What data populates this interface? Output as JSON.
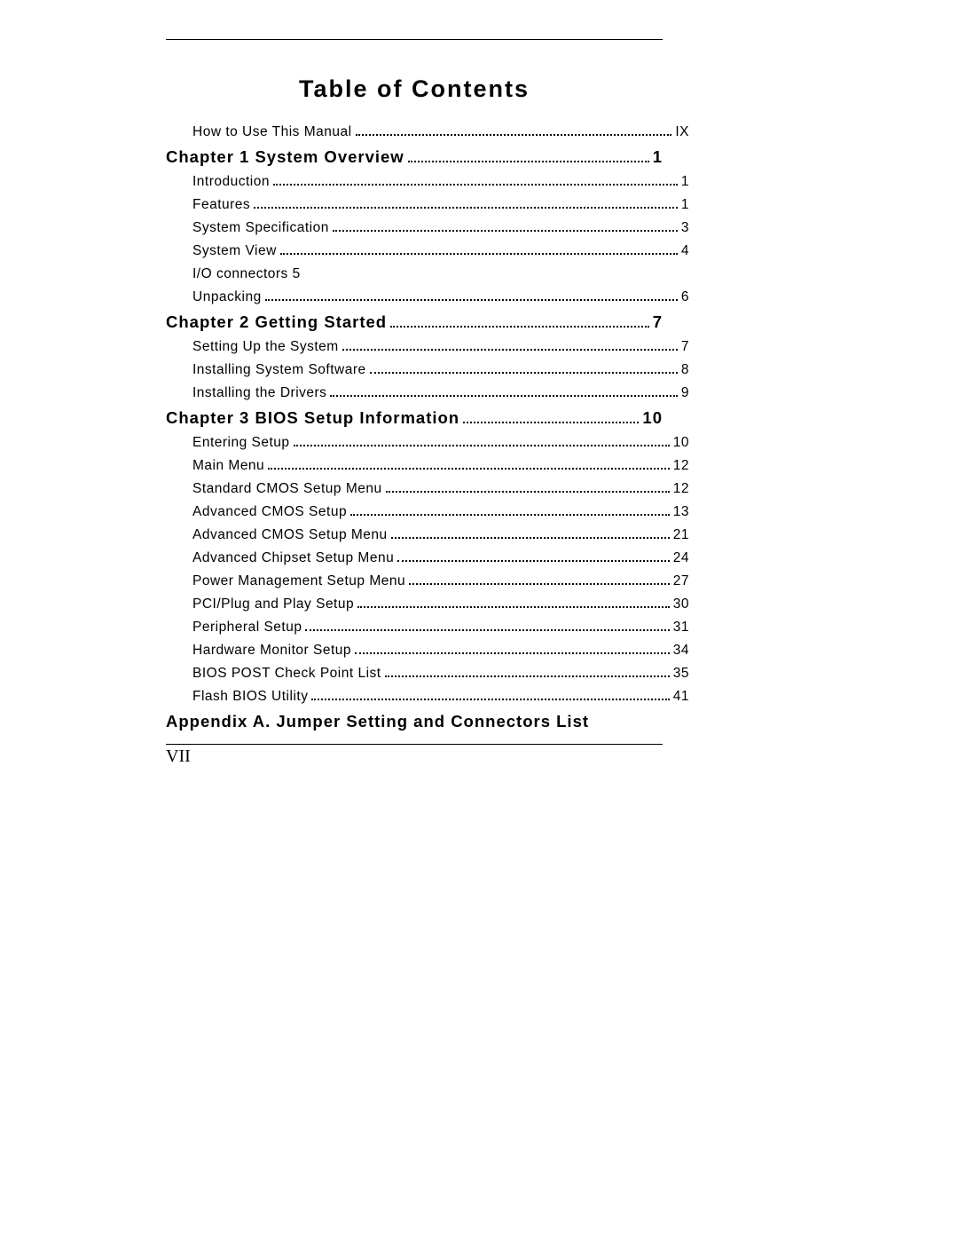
{
  "title": "Table of Contents",
  "folio": "VII",
  "background_color": "#ffffff",
  "text_color": "#000000",
  "entries": [
    {
      "type": "sub",
      "label": "How to Use This Manual",
      "page": "IX"
    },
    {
      "type": "chapter",
      "label": "Chapter 1 System Overview",
      "page": "1"
    },
    {
      "type": "sub",
      "label": "Introduction",
      "page": "1"
    },
    {
      "type": "sub",
      "label": "Features",
      "page": "1"
    },
    {
      "type": "sub",
      "label": "System Specification",
      "page": "3"
    },
    {
      "type": "sub",
      "label": "System View",
      "page": "4"
    },
    {
      "type": "nonum",
      "label": "I/O connectors 5",
      "page": ""
    },
    {
      "type": "sub",
      "label": "Unpacking",
      "page": "6"
    },
    {
      "type": "chapter",
      "label": "Chapter 2 Getting Started",
      "page": "7"
    },
    {
      "type": "sub",
      "label": "Setting Up the System",
      "page": "7"
    },
    {
      "type": "sub",
      "label": "Installing System Software",
      "page": "8"
    },
    {
      "type": "sub",
      "label": "Installing the Drivers",
      "page": "9"
    },
    {
      "type": "chapter",
      "label": "Chapter 3 BIOS Setup Information",
      "page": "10"
    },
    {
      "type": "sub",
      "label": "Entering Setup",
      "page": "10"
    },
    {
      "type": "sub",
      "label": "Main Menu",
      "page": "12"
    },
    {
      "type": "sub",
      "label": "Standard CMOS Setup Menu",
      "page": "12"
    },
    {
      "type": "sub",
      "label": "Advanced CMOS Setup",
      "page": "13"
    },
    {
      "type": "sub",
      "label": "Advanced CMOS Setup Menu",
      "page": "21"
    },
    {
      "type": "sub",
      "label": "Advanced Chipset Setup Menu",
      "page": "24"
    },
    {
      "type": "sub",
      "label": "Power Management Setup Menu",
      "page": "27"
    },
    {
      "type": "sub",
      "label": "PCI/Plug and Play Setup",
      "page": "30"
    },
    {
      "type": "sub",
      "label": "Peripheral Setup",
      "page": "31"
    },
    {
      "type": "sub",
      "label": "Hardware Monitor Setup",
      "page": "34"
    },
    {
      "type": "sub",
      "label": "BIOS POST Check Point List",
      "page": "35"
    },
    {
      "type": "sub",
      "label": "Flash BIOS Utility",
      "page": "41"
    },
    {
      "type": "appendix",
      "label": "Appendix A. Jumper Setting and Connectors List",
      "page": ""
    }
  ]
}
